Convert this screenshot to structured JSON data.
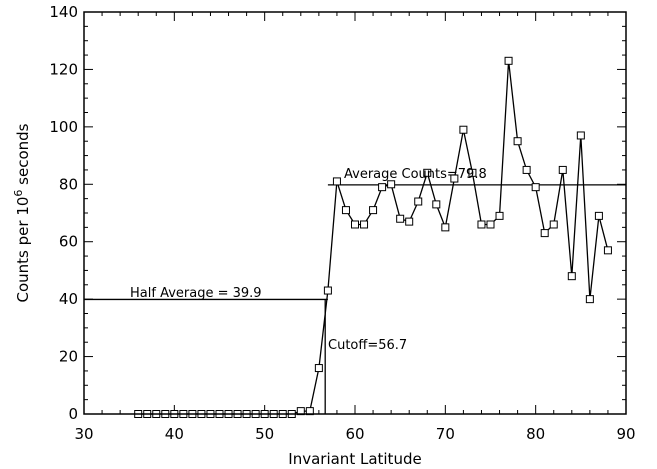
{
  "chart_data": {
    "type": "line",
    "title": "",
    "xlabel": "Invariant Latitude",
    "ylabel": {
      "prefix": "Counts per 10",
      "sup": "6",
      "suffix": " seconds"
    },
    "xlim": [
      30,
      90
    ],
    "ylim": [
      0,
      140
    ],
    "xticks": [
      30,
      40,
      50,
      60,
      70,
      80,
      90
    ],
    "yticks": [
      0,
      20,
      40,
      60,
      80,
      100,
      120,
      140
    ],
    "grid": false,
    "series": [
      {
        "marker": "square",
        "points": [
          [
            36,
            0
          ],
          [
            37,
            0
          ],
          [
            38,
            0
          ],
          [
            39,
            0
          ],
          [
            40,
            0
          ],
          [
            41,
            0
          ],
          [
            42,
            0
          ],
          [
            43,
            0
          ],
          [
            44,
            0
          ],
          [
            45,
            0
          ],
          [
            46,
            0
          ],
          [
            47,
            0
          ],
          [
            48,
            0
          ],
          [
            49,
            0
          ],
          [
            50,
            0
          ],
          [
            51,
            0
          ],
          [
            52,
            0
          ],
          [
            53,
            0
          ],
          [
            54,
            1
          ],
          [
            55,
            1
          ],
          [
            56,
            16
          ],
          [
            57,
            43
          ],
          [
            58,
            81
          ],
          [
            59,
            71
          ],
          [
            60,
            66
          ],
          [
            61,
            66
          ],
          [
            62,
            71
          ],
          [
            63,
            79
          ],
          [
            64,
            80
          ],
          [
            65,
            68
          ],
          [
            66,
            67
          ],
          [
            67,
            74
          ],
          [
            68,
            84
          ],
          [
            69,
            73
          ],
          [
            70,
            65
          ],
          [
            71,
            82
          ],
          [
            72,
            99
          ],
          [
            73,
            84
          ],
          [
            74,
            66
          ],
          [
            75,
            66
          ],
          [
            76,
            69
          ],
          [
            77,
            123
          ],
          [
            78,
            95
          ],
          [
            79,
            85
          ],
          [
            80,
            79
          ],
          [
            81,
            63
          ],
          [
            82,
            66
          ],
          [
            83,
            85
          ],
          [
            84,
            48
          ],
          [
            85,
            97
          ],
          [
            86,
            40
          ],
          [
            87,
            69
          ],
          [
            88,
            57
          ]
        ]
      }
    ],
    "annotations": {
      "average": {
        "label": "Average Counts=79.8",
        "value": 79.8,
        "x_start": 57
      },
      "half_average": {
        "label": "Half Average = 39.9",
        "value": 39.9,
        "x_end": 57
      },
      "cutoff": {
        "label": "Cutoff=56.7",
        "value": 56.7
      }
    }
  }
}
